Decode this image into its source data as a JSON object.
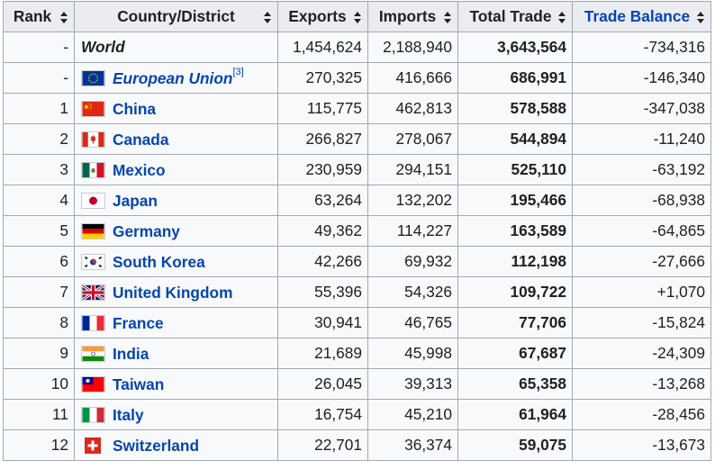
{
  "headers": {
    "rank": "Rank",
    "country": "Country/District",
    "exports": "Exports",
    "imports": "Imports",
    "total": "Total Trade",
    "balance": "Trade Balance"
  },
  "rows": [
    {
      "rank": "-",
      "country": "World",
      "exports": "1,454,624",
      "imports": "2,188,940",
      "total": "3,643,564",
      "balance": "-734,316"
    },
    {
      "rank": "-",
      "country": "European Union",
      "note": "[3]",
      "exports": "270,325",
      "imports": "416,666",
      "total": "686,991",
      "balance": "-146,340",
      "flag": "eu-flag-icon"
    },
    {
      "rank": "1",
      "country": "China",
      "exports": "115,775",
      "imports": "462,813",
      "total": "578,588",
      "balance": "-347,038",
      "flag": "china-flag-icon"
    },
    {
      "rank": "2",
      "country": "Canada",
      "exports": "266,827",
      "imports": "278,067",
      "total": "544,894",
      "balance": "-11,240",
      "flag": "canada-flag-icon"
    },
    {
      "rank": "3",
      "country": "Mexico",
      "exports": "230,959",
      "imports": "294,151",
      "total": "525,110",
      "balance": "-63,192",
      "flag": "mexico-flag-icon"
    },
    {
      "rank": "4",
      "country": "Japan",
      "exports": "63,264",
      "imports": "132,202",
      "total": "195,466",
      "balance": "-68,938",
      "flag": "japan-flag-icon"
    },
    {
      "rank": "5",
      "country": "Germany",
      "exports": "49,362",
      "imports": "114,227",
      "total": "163,589",
      "balance": "-64,865",
      "flag": "germany-flag-icon"
    },
    {
      "rank": "6",
      "country": "South Korea",
      "exports": "42,266",
      "imports": "69,932",
      "total": "112,198",
      "balance": "-27,666",
      "flag": "south-korea-flag-icon"
    },
    {
      "rank": "7",
      "country": "United Kingdom",
      "exports": "55,396",
      "imports": "54,326",
      "total": "109,722",
      "balance": "+1,070",
      "flag": "uk-flag-icon"
    },
    {
      "rank": "8",
      "country": "France",
      "exports": "30,941",
      "imports": "46,765",
      "total": "77,706",
      "balance": "-15,824",
      "flag": "france-flag-icon"
    },
    {
      "rank": "9",
      "country": "India",
      "exports": "21,689",
      "imports": "45,998",
      "total": "67,687",
      "balance": "-24,309",
      "flag": "india-flag-icon"
    },
    {
      "rank": "10",
      "country": "Taiwan",
      "exports": "26,045",
      "imports": "39,313",
      "total": "65,358",
      "balance": "-13,268",
      "flag": "taiwan-flag-icon"
    },
    {
      "rank": "11",
      "country": "Italy",
      "exports": "16,754",
      "imports": "45,210",
      "total": "61,964",
      "balance": "-28,456",
      "flag": "italy-flag-icon"
    },
    {
      "rank": "12",
      "country": "Switzerland",
      "exports": "22,701",
      "imports": "36,374",
      "total": "59,075",
      "balance": "-13,673",
      "flag": "switzerland-flag-icon"
    }
  ],
  "colors": {
    "link": "#0645ad",
    "header_bg": "#eaecf0",
    "border": "#a2a9b1",
    "cell_bg": "#f8f9fa"
  }
}
